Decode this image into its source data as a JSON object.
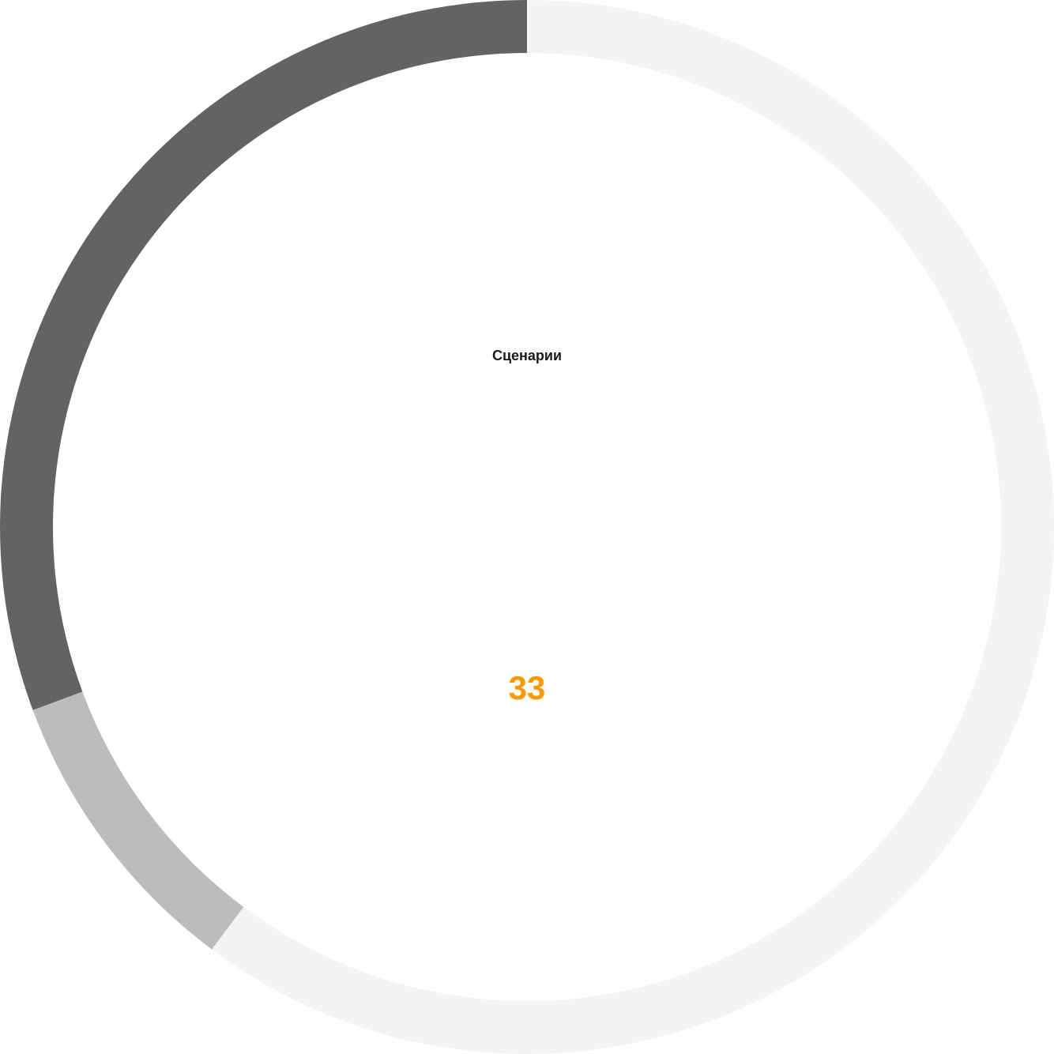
{
  "chart_data": {
    "type": "pie",
    "title": "Сценарии",
    "total_label": "33",
    "donut": true,
    "series": [
      {
        "value": 0.3065,
        "color": "#636363"
      },
      {
        "value": 0.0915,
        "color": "#bcbcbc"
      },
      {
        "value": 0.602,
        "color": "#f4f4f4"
      }
    ]
  },
  "colors": {
    "accent": "#ff9800",
    "background": "#ffffff"
  }
}
